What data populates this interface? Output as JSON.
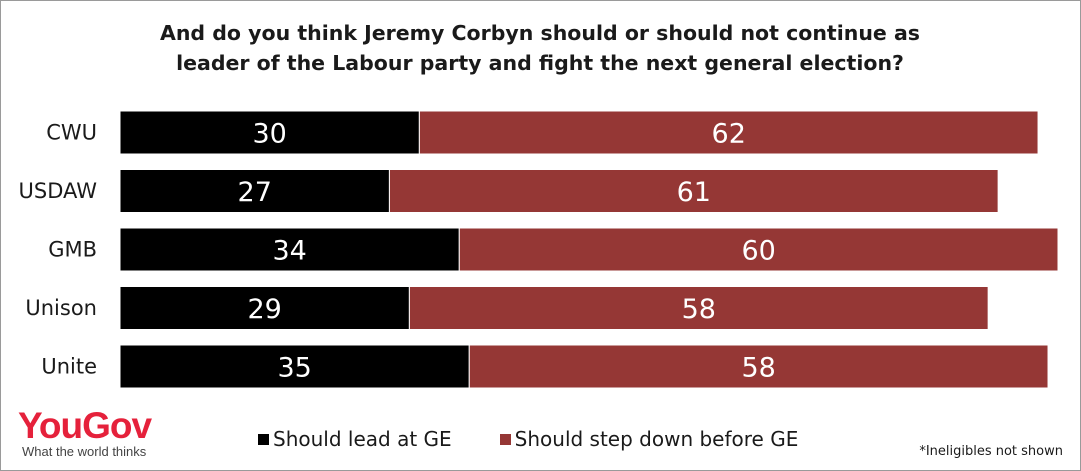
{
  "chart_data": {
    "type": "bar",
    "stacked": true,
    "orientation": "horizontal",
    "title": [
      "And do you think Jeremy Corbyn should or should not continue as",
      "leader of the Labour party and fight the next general election?"
    ],
    "categories": [
      "CWU",
      "USDAW",
      "GMB",
      "Unison",
      "Unite"
    ],
    "series": [
      {
        "name": "Should lead at GE",
        "color": "#000000",
        "values": [
          30,
          27,
          34,
          29,
          35
        ]
      },
      {
        "name": "Should step down before GE",
        "color": "#953735",
        "values": [
          62,
          61,
          60,
          58,
          58
        ]
      }
    ],
    "legend_position": "bottom",
    "grid": false
  },
  "logo": {
    "word": "YouGov",
    "tagline": "What the world thinks"
  },
  "footnote": "*Ineligibles not shown"
}
